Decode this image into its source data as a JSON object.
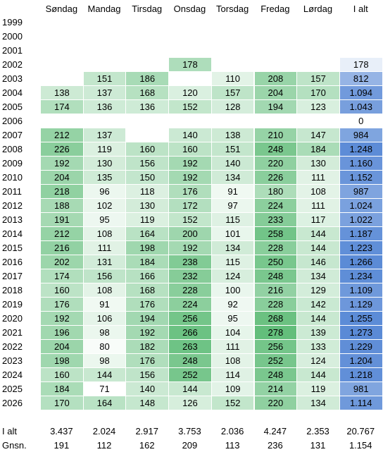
{
  "table": {
    "columns": [
      "Søndag",
      "Mandag",
      "Tirsdag",
      "Onsdag",
      "Torsdag",
      "Fredag",
      "Lørdag",
      "I alt"
    ],
    "heatmap": {
      "days_color": "#63be7b",
      "total_color": "#5a8ad6",
      "low_color": "#ffffff"
    },
    "rows": [
      {
        "label": "1999",
        "cells": [
          null,
          null,
          null,
          null,
          null,
          null,
          null,
          null
        ]
      },
      {
        "label": "2000",
        "cells": [
          null,
          null,
          null,
          null,
          null,
          null,
          null,
          null
        ]
      },
      {
        "label": "2001",
        "cells": [
          null,
          null,
          null,
          null,
          null,
          null,
          null,
          null
        ]
      },
      {
        "label": "2002",
        "cells": [
          null,
          null,
          null,
          "178",
          null,
          null,
          null,
          "178"
        ]
      },
      {
        "label": "2003",
        "cells": [
          null,
          "151",
          "186",
          null,
          "110",
          "208",
          "157",
          "812"
        ]
      },
      {
        "label": "2004",
        "cells": [
          "138",
          "137",
          "168",
          "120",
          "157",
          "204",
          "170",
          "1.094"
        ]
      },
      {
        "label": "2005",
        "cells": [
          "174",
          "136",
          "136",
          "152",
          "128",
          "194",
          "123",
          "1.043"
        ]
      },
      {
        "label": "2006",
        "cells": [
          null,
          null,
          null,
          null,
          null,
          null,
          null,
          "0"
        ]
      },
      {
        "label": "2007",
        "cells": [
          "212",
          "137",
          null,
          "140",
          "138",
          "210",
          "147",
          "984"
        ]
      },
      {
        "label": "2008",
        "cells": [
          "226",
          "119",
          "160",
          "160",
          "151",
          "248",
          "184",
          "1.248"
        ]
      },
      {
        "label": "2009",
        "cells": [
          "192",
          "130",
          "156",
          "192",
          "140",
          "220",
          "130",
          "1.160"
        ]
      },
      {
        "label": "2010",
        "cells": [
          "204",
          "135",
          "150",
          "192",
          "134",
          "226",
          "111",
          "1.152"
        ]
      },
      {
        "label": "2011",
        "cells": [
          "218",
          "96",
          "118",
          "176",
          "91",
          "180",
          "108",
          "987"
        ]
      },
      {
        "label": "2012",
        "cells": [
          "188",
          "102",
          "130",
          "172",
          "97",
          "224",
          "111",
          "1.024"
        ]
      },
      {
        "label": "2013",
        "cells": [
          "191",
          "95",
          "119",
          "152",
          "115",
          "233",
          "117",
          "1.022"
        ]
      },
      {
        "label": "2014",
        "cells": [
          "212",
          "108",
          "164",
          "200",
          "101",
          "258",
          "144",
          "1.187"
        ]
      },
      {
        "label": "2015",
        "cells": [
          "216",
          "111",
          "198",
          "192",
          "134",
          "228",
          "144",
          "1.223"
        ]
      },
      {
        "label": "2016",
        "cells": [
          "202",
          "131",
          "184",
          "238",
          "115",
          "250",
          "146",
          "1.266"
        ]
      },
      {
        "label": "2017",
        "cells": [
          "174",
          "156",
          "166",
          "232",
          "124",
          "248",
          "134",
          "1.234"
        ]
      },
      {
        "label": "2018",
        "cells": [
          "160",
          "108",
          "168",
          "228",
          "100",
          "216",
          "129",
          "1.109"
        ]
      },
      {
        "label": "2019",
        "cells": [
          "176",
          "91",
          "176",
          "224",
          "92",
          "228",
          "142",
          "1.129"
        ]
      },
      {
        "label": "2020",
        "cells": [
          "192",
          "106",
          "194",
          "256",
          "95",
          "268",
          "144",
          "1.255"
        ]
      },
      {
        "label": "2021",
        "cells": [
          "196",
          "98",
          "192",
          "266",
          "104",
          "278",
          "139",
          "1.273"
        ]
      },
      {
        "label": "2022",
        "cells": [
          "204",
          "80",
          "182",
          "263",
          "111",
          "256",
          "133",
          "1.229"
        ]
      },
      {
        "label": "2023",
        "cells": [
          "198",
          "98",
          "176",
          "248",
          "108",
          "252",
          "124",
          "1.204"
        ]
      },
      {
        "label": "2024",
        "cells": [
          "160",
          "144",
          "156",
          "252",
          "114",
          "248",
          "144",
          "1.218"
        ]
      },
      {
        "label": "2025",
        "cells": [
          "184",
          "71",
          "140",
          "144",
          "109",
          "214",
          "119",
          "981"
        ]
      },
      {
        "label": "2026",
        "cells": [
          "170",
          "164",
          "148",
          "126",
          "152",
          "220",
          "134",
          "1.114"
        ]
      }
    ],
    "totals": [
      {
        "label": "I alt",
        "cells": [
          "3.437",
          "2.024",
          "2.917",
          "3.753",
          "2.036",
          "4.247",
          "2.353",
          "20.767"
        ]
      },
      {
        "label": "Gnsn.",
        "cells": [
          "191",
          "112",
          "162",
          "209",
          "113",
          "236",
          "131",
          "1.154"
        ]
      }
    ]
  }
}
